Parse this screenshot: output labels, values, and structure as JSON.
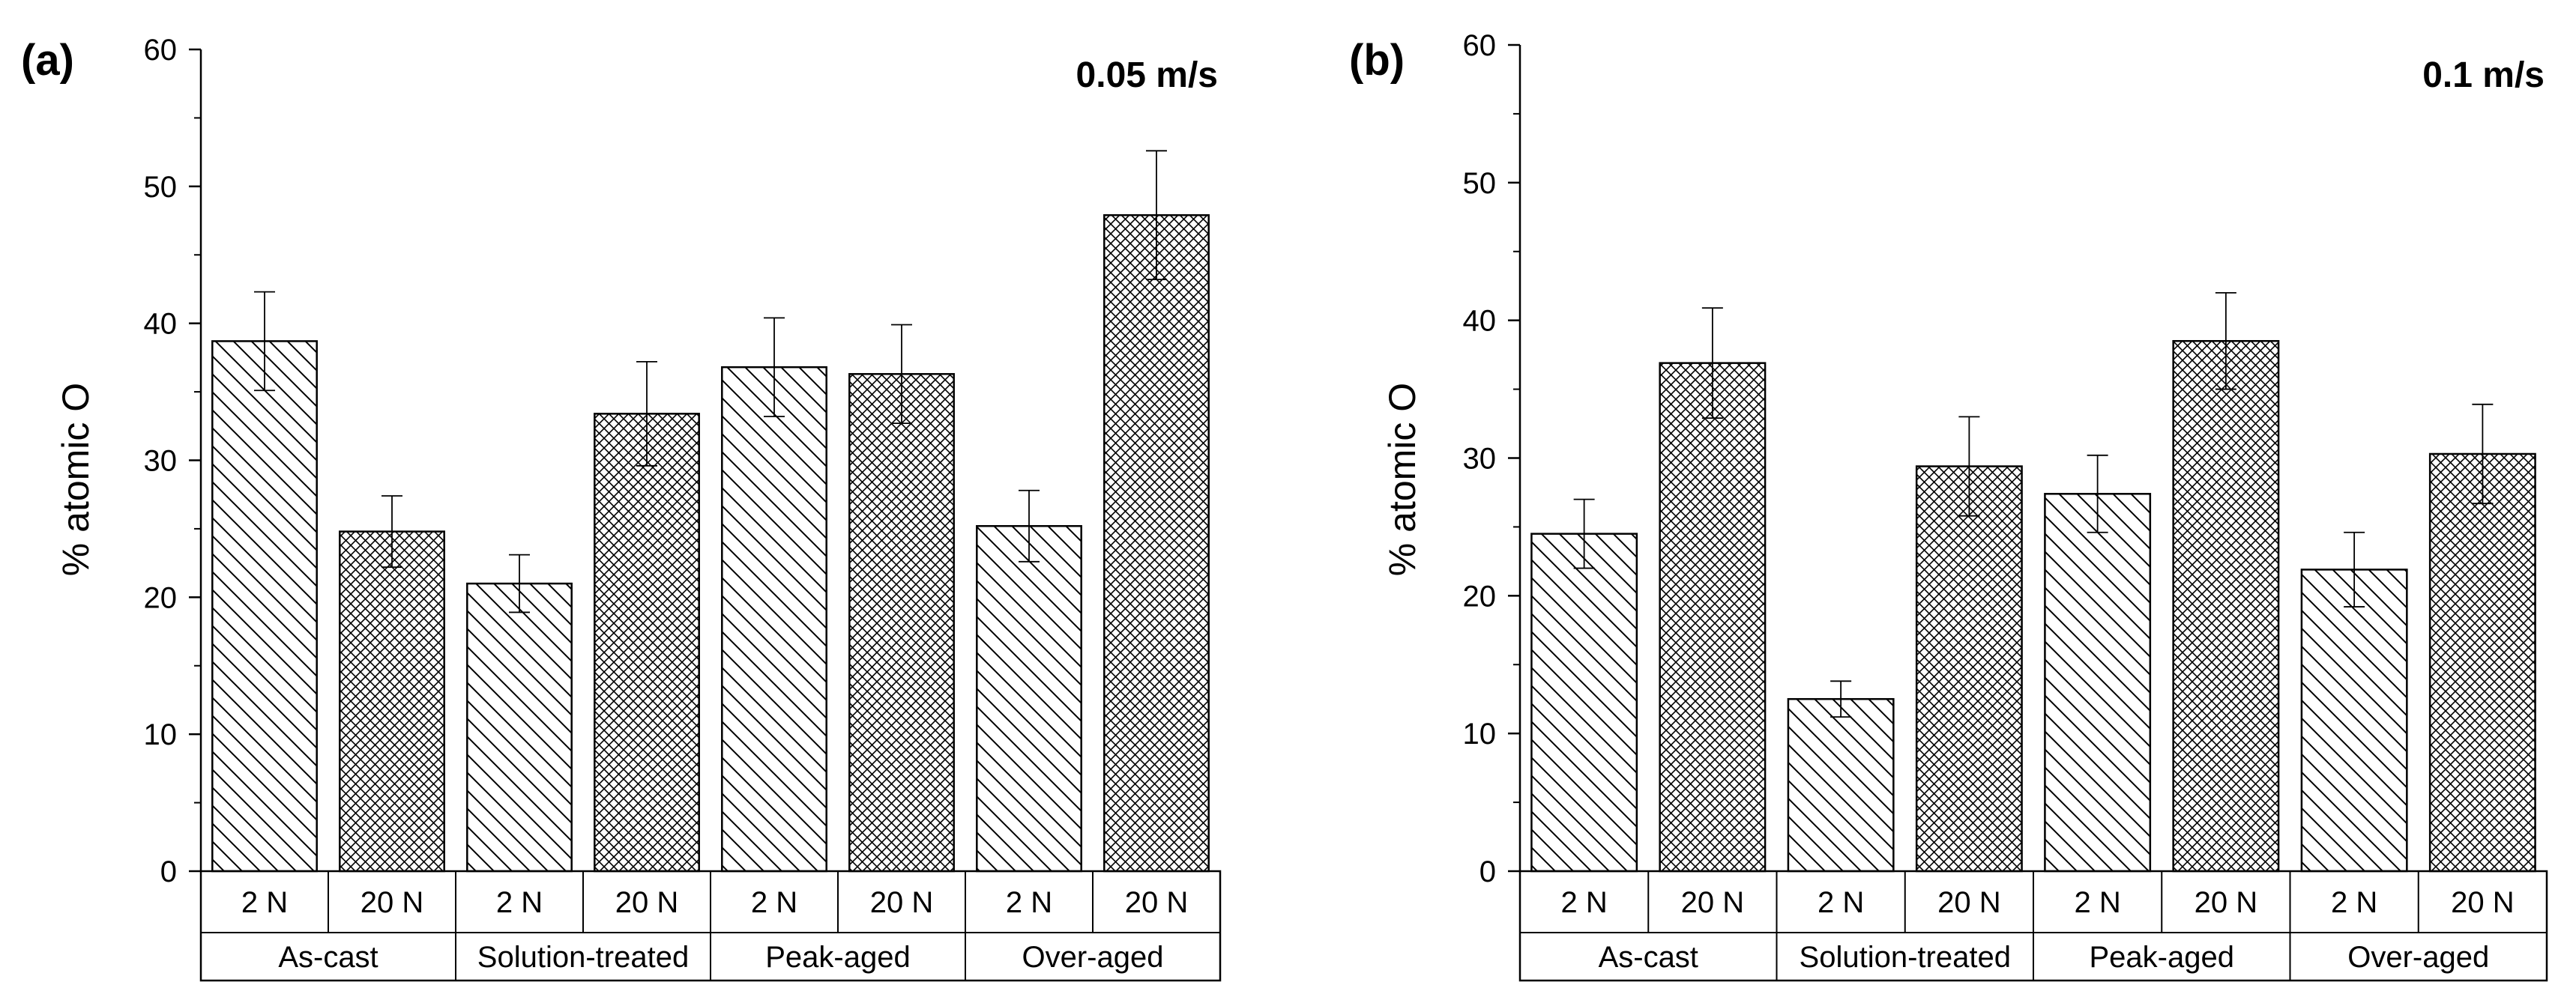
{
  "chart_data": [
    {
      "type": "bar",
      "panel_label": "(a)",
      "title": "0.05 m/s",
      "ylabel": "% atomic O",
      "xlabel": "",
      "ylim": [
        0,
        60
      ],
      "yticks": [
        0,
        10,
        20,
        30,
        40,
        50,
        60
      ],
      "groups": [
        "As-cast",
        "Solution-treated",
        "Peak-aged",
        "Over-aged"
      ],
      "loads": [
        "2 N",
        "20 N"
      ],
      "categories": [
        "2 N",
        "20 N",
        "2 N",
        "20 N",
        "2 N",
        "20 N",
        "2 N",
        "20 N"
      ],
      "values": [
        38.7,
        24.8,
        21.0,
        33.4,
        36.8,
        36.3,
        25.2,
        47.9
      ],
      "errors": [
        3.6,
        2.6,
        2.1,
        3.8,
        3.6,
        3.6,
        2.6,
        4.7
      ],
      "patterns": [
        "diag",
        "cross",
        "diag",
        "cross",
        "diag",
        "cross",
        "diag",
        "cross"
      ]
    },
    {
      "type": "bar",
      "panel_label": "(b)",
      "title": "0.1 m/s",
      "ylabel": "% atomic O",
      "xlabel": "",
      "ylim": [
        0,
        60
      ],
      "yticks": [
        0,
        10,
        20,
        30,
        40,
        50,
        60
      ],
      "groups": [
        "As-cast",
        "Solution-treated",
        "Peak-aged",
        "Over-aged"
      ],
      "loads": [
        "2 N",
        "20 N"
      ],
      "categories": [
        "2 N",
        "20 N",
        "2 N",
        "20 N",
        "2 N",
        "20 N",
        "2 N",
        "20 N"
      ],
      "values": [
        24.5,
        36.9,
        12.5,
        29.4,
        27.4,
        38.5,
        21.9,
        30.3
      ],
      "errors": [
        2.5,
        4.0,
        1.3,
        3.6,
        2.8,
        3.5,
        2.7,
        3.6
      ],
      "patterns": [
        "diag",
        "cross",
        "diag",
        "cross",
        "diag",
        "cross",
        "diag",
        "cross"
      ]
    }
  ]
}
